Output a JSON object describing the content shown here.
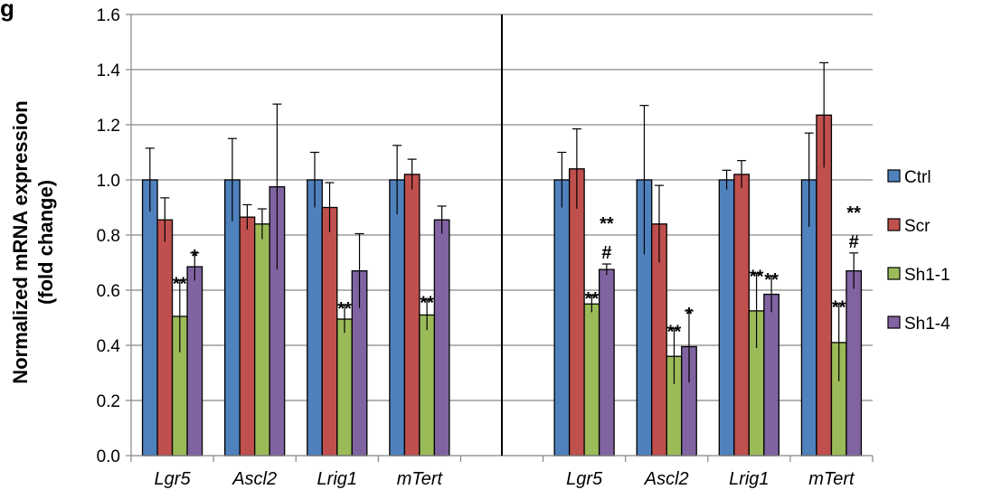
{
  "panel_label": "g",
  "chart_data": {
    "type": "bar",
    "ylabel_line1": "Normalized mRNA expression",
    "ylabel_line2": "(fold change)",
    "ylim": [
      0,
      1.6
    ],
    "yticks": [
      "0.0",
      "0.2",
      "0.4",
      "0.6",
      "0.8",
      "1.0",
      "1.2",
      "1.4",
      "1.6"
    ],
    "grid": true,
    "legend_position": "right",
    "groups": [
      {
        "categories": [
          "Lgr5",
          "Ascl2",
          "Lrig1",
          "mTert"
        ],
        "series": [
          {
            "name": "Ctrl",
            "color": "#4F81BD",
            "values": [
              1.0,
              1.0,
              1.0,
              1.0
            ],
            "errors": [
              0.115,
              0.15,
              0.1,
              0.125
            ]
          },
          {
            "name": "Scr",
            "color": "#C0504D",
            "values": [
              0.855,
              0.865,
              0.9,
              1.02
            ],
            "errors": [
              0.08,
              0.045,
              0.09,
              0.055
            ]
          },
          {
            "name": "Sh1-1",
            "color": "#9BBB59",
            "values": [
              0.505,
              0.84,
              0.495,
              0.51
            ],
            "errors": [
              0.13,
              0.055,
              0.05,
              0.055
            ]
          },
          {
            "name": "Sh1-4",
            "color": "#8064A2",
            "values": [
              0.685,
              0.975,
              0.67,
              0.855
            ],
            "errors": [
              0.05,
              0.3,
              0.135,
              0.05
            ]
          }
        ],
        "annotations": [
          {
            "category": 0,
            "series": 2,
            "text": "**"
          },
          {
            "category": 0,
            "series": 3,
            "text": "*"
          },
          {
            "category": 2,
            "series": 2,
            "text": "**"
          },
          {
            "category": 3,
            "series": 2,
            "text": "**"
          }
        ]
      },
      {
        "categories": [
          "Lgr5",
          "Ascl2",
          "Lrig1",
          "mTert"
        ],
        "series": [
          {
            "name": "Ctrl",
            "color": "#4F81BD",
            "values": [
              1.0,
              1.0,
              1.0,
              1.0
            ],
            "errors": [
              0.1,
              0.27,
              0.035,
              0.17
            ]
          },
          {
            "name": "Scr",
            "color": "#C0504D",
            "values": [
              1.04,
              0.84,
              1.02,
              1.235
            ],
            "errors": [
              0.145,
              0.14,
              0.05,
              0.19
            ]
          },
          {
            "name": "Sh1-1",
            "color": "#9BBB59",
            "values": [
              0.55,
              0.36,
              0.525,
              0.41
            ],
            "errors": [
              0.03,
              0.1,
              0.135,
              0.14
            ]
          },
          {
            "name": "Sh1-4",
            "color": "#8064A2",
            "values": [
              0.675,
              0.395,
              0.585,
              0.67
            ],
            "errors": [
              0.02,
              0.13,
              0.065,
              0.065
            ]
          }
        ],
        "annotations": [
          {
            "category": 0,
            "series": 2,
            "text": "**"
          },
          {
            "category": 0,
            "series": 3,
            "text": "**",
            "line": 0
          },
          {
            "category": 0,
            "series": 3,
            "text": "#",
            "line": 1
          },
          {
            "category": 1,
            "series": 2,
            "text": "**"
          },
          {
            "category": 1,
            "series": 3,
            "text": "*"
          },
          {
            "category": 2,
            "series": 2,
            "text": "**"
          },
          {
            "category": 2,
            "series": 3,
            "text": "**"
          },
          {
            "category": 3,
            "series": 2,
            "text": "**"
          },
          {
            "category": 3,
            "series": 3,
            "text": "**",
            "line": 0
          },
          {
            "category": 3,
            "series": 3,
            "text": "#",
            "line": 1
          }
        ]
      }
    ],
    "legend": [
      "Ctrl",
      "Scr",
      "Sh1-1",
      "Sh1-4"
    ]
  }
}
